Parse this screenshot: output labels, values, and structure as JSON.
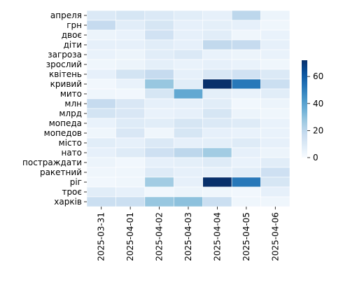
{
  "chart_data": {
    "type": "heatmap",
    "title": "",
    "xlabel": "",
    "ylabel": "",
    "x_categories": [
      "2025-03-31",
      "2025-04-01",
      "2025-04-02",
      "2025-04-03",
      "2025-04-04",
      "2025-04-05",
      "2025-04-06"
    ],
    "y_categories": [
      "апреля",
      "грн",
      "двоє",
      "діти",
      "загроза",
      "зрослий",
      "квітень",
      "кривий",
      "мито",
      "млн",
      "млрд",
      "мопеда",
      "мопедов",
      "місто",
      "нато",
      "постраждати",
      "ракетний",
      "ріг",
      "троє",
      "харків"
    ],
    "values": [
      [
        10,
        12,
        10,
        8,
        6,
        20,
        4
      ],
      [
        18,
        8,
        12,
        6,
        7,
        6,
        3
      ],
      [
        4,
        5,
        14,
        6,
        8,
        3,
        5
      ],
      [
        6,
        6,
        8,
        6,
        19,
        18,
        6
      ],
      [
        5,
        4,
        8,
        10,
        5,
        4,
        5
      ],
      [
        3,
        4,
        7,
        5,
        6,
        5,
        3
      ],
      [
        6,
        13,
        18,
        6,
        11,
        14,
        10
      ],
      [
        2,
        5,
        28,
        8,
        72,
        52,
        16
      ],
      [
        3,
        2,
        12,
        38,
        7,
        5,
        8
      ],
      [
        18,
        11,
        6,
        6,
        8,
        2,
        4
      ],
      [
        13,
        11,
        5,
        6,
        12,
        4,
        3
      ],
      [
        5,
        9,
        8,
        12,
        10,
        9,
        5
      ],
      [
        3,
        11,
        3,
        12,
        6,
        5,
        5
      ],
      [
        8,
        6,
        10,
        6,
        7,
        9,
        6
      ],
      [
        6,
        9,
        15,
        20,
        26,
        6,
        4
      ],
      [
        4,
        2,
        6,
        7,
        9,
        5,
        8
      ],
      [
        3,
        3,
        9,
        6,
        6,
        8,
        15
      ],
      [
        2,
        3,
        26,
        6,
        72,
        52,
        12
      ],
      [
        8,
        6,
        2,
        4,
        3,
        2,
        6
      ],
      [
        16,
        16,
        28,
        30,
        16,
        3,
        3
      ]
    ],
    "vmin": 0,
    "vmax": 72,
    "colorbar_ticks": [
      0,
      20,
      40,
      60
    ],
    "colormap": "Blues",
    "colors": {
      "low": "#f7fbff",
      "high": "#08306b"
    }
  }
}
